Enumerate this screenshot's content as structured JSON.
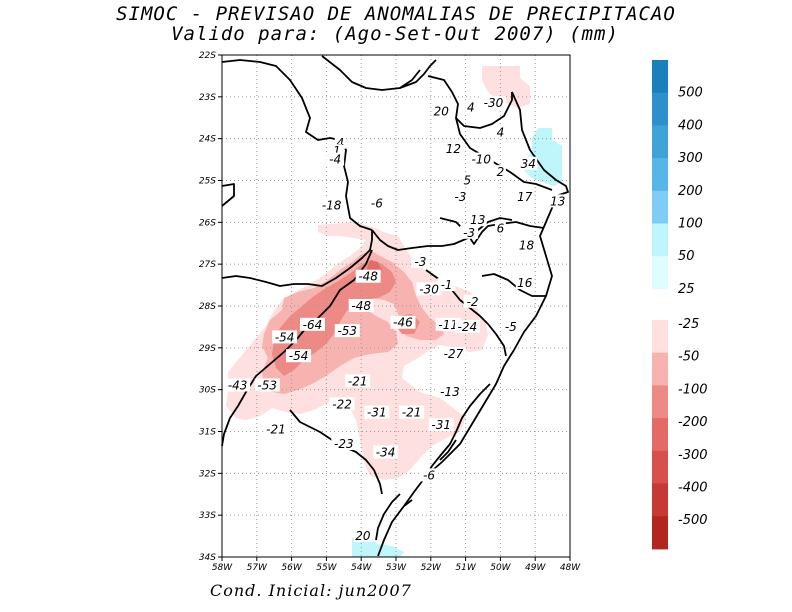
{
  "title": {
    "line1": "SIMOC - PREVISAO DE ANOMALIAS DE PRECIPITACAO",
    "line2": "Valido para: (Ago-Set-Out 2007) (mm)"
  },
  "footer": "Cond. Inicial: jun2007",
  "axes": {
    "lat_ticks": [
      "22S",
      "23S",
      "24S",
      "25S",
      "26S",
      "27S",
      "28S",
      "29S",
      "30S",
      "31S",
      "32S",
      "33S",
      "34S"
    ],
    "lon_ticks": [
      "58W",
      "57W",
      "56W",
      "55W",
      "54W",
      "53W",
      "52W",
      "51W",
      "50W",
      "49W",
      "48W"
    ],
    "lat_range": [
      -34,
      -22
    ],
    "lon_range": [
      -58,
      -48
    ]
  },
  "colorbar_positive": {
    "labels": [
      "500",
      "400",
      "300",
      "200",
      "100",
      "50",
      "25"
    ],
    "colors": [
      "#1a7fbd",
      "#2d8fcb",
      "#3fa2d8",
      "#55b6e7",
      "#7fcdf7",
      "#bff6fb",
      "#dffcfe"
    ]
  },
  "colorbar_negative": {
    "labels": [
      "-25",
      "-50",
      "-100",
      "-200",
      "-300",
      "-400",
      "-500"
    ],
    "colors": [
      "#fde0df",
      "#f7b3b0",
      "#ee8a86",
      "#e46a66",
      "#d8504b",
      "#c53a35",
      "#b22620"
    ]
  },
  "values": [
    {
      "text": "20",
      "lon": -51.7,
      "lat": -23.35
    },
    {
      "text": "4",
      "lon": -50.85,
      "lat": -23.25
    },
    {
      "text": "-30",
      "lon": -50.2,
      "lat": -23.15
    },
    {
      "text": "4",
      "lon": -50.0,
      "lat": -23.85
    },
    {
      "text": "4",
      "lon": -54.6,
      "lat": -24.1
    },
    {
      "text": "1",
      "lon": -54.7,
      "lat": -24.3
    },
    {
      "text": "12",
      "lon": -51.35,
      "lat": -24.25
    },
    {
      "text": "-4",
      "lon": -54.75,
      "lat": -24.5
    },
    {
      "text": "-10",
      "lon": -50.55,
      "lat": -24.5
    },
    {
      "text": "34",
      "lon": -49.2,
      "lat": -24.6
    },
    {
      "text": "2",
      "lon": -50.0,
      "lat": -24.8
    },
    {
      "text": "5",
      "lon": -50.95,
      "lat": -25.0
    },
    {
      "text": "-3",
      "lon": -51.15,
      "lat": -25.4
    },
    {
      "text": "17",
      "lon": -49.3,
      "lat": -25.4
    },
    {
      "text": "13",
      "lon": -48.35,
      "lat": -25.5
    },
    {
      "text": "-18",
      "lon": -54.85,
      "lat": -25.6
    },
    {
      "text": "-6",
      "lon": -53.55,
      "lat": -25.55
    },
    {
      "text": "13",
      "lon": -50.65,
      "lat": -25.95
    },
    {
      "text": "6",
      "lon": -50.0,
      "lat": -26.15
    },
    {
      "text": "-3",
      "lon": -50.9,
      "lat": -26.25
    },
    {
      "text": "18",
      "lon": -49.25,
      "lat": -26.55
    },
    {
      "text": "-3",
      "lon": -52.3,
      "lat": -26.95
    },
    {
      "text": "-48",
      "lon": -53.8,
      "lat": -27.3
    },
    {
      "text": "-1",
      "lon": -51.55,
      "lat": -27.5
    },
    {
      "text": "-30",
      "lon": -52.05,
      "lat": -27.6
    },
    {
      "text": "16",
      "lon": -49.3,
      "lat": -27.45
    },
    {
      "text": "-2",
      "lon": -50.8,
      "lat": -27.9
    },
    {
      "text": "-48",
      "lon": -54.0,
      "lat": -28.0
    },
    {
      "text": "-46",
      "lon": -52.8,
      "lat": -28.4
    },
    {
      "text": "-11",
      "lon": -51.5,
      "lat": -28.45
    },
    {
      "text": "-24",
      "lon": -50.95,
      "lat": -28.5
    },
    {
      "text": "-5",
      "lon": -49.7,
      "lat": -28.5
    },
    {
      "text": "-64",
      "lon": -55.4,
      "lat": -28.45
    },
    {
      "text": "-53",
      "lon": -54.4,
      "lat": -28.6
    },
    {
      "text": "-54",
      "lon": -56.2,
      "lat": -28.75
    },
    {
      "text": "-54",
      "lon": -55.8,
      "lat": -29.2
    },
    {
      "text": "-27",
      "lon": -51.35,
      "lat": -29.15
    },
    {
      "text": "-21",
      "lon": -54.1,
      "lat": -29.8
    },
    {
      "text": "-43",
      "lon": -57.55,
      "lat": -29.9
    },
    {
      "text": "-53",
      "lon": -56.7,
      "lat": -29.9
    },
    {
      "text": "-13",
      "lon": -51.45,
      "lat": -30.05
    },
    {
      "text": "-22",
      "lon": -54.55,
      "lat": -30.35
    },
    {
      "text": "-31",
      "lon": -53.55,
      "lat": -30.55
    },
    {
      "text": "-21",
      "lon": -52.55,
      "lat": -30.55
    },
    {
      "text": "-31",
      "lon": -51.7,
      "lat": -30.85
    },
    {
      "text": "-21",
      "lon": -56.45,
      "lat": -30.95
    },
    {
      "text": "-23",
      "lon": -54.5,
      "lat": -31.3
    },
    {
      "text": "-34",
      "lon": -53.3,
      "lat": -31.5
    },
    {
      "text": "-6",
      "lon": -52.05,
      "lat": -32.05
    },
    {
      "text": "20",
      "lon": -53.95,
      "lat": -33.5
    }
  ]
}
